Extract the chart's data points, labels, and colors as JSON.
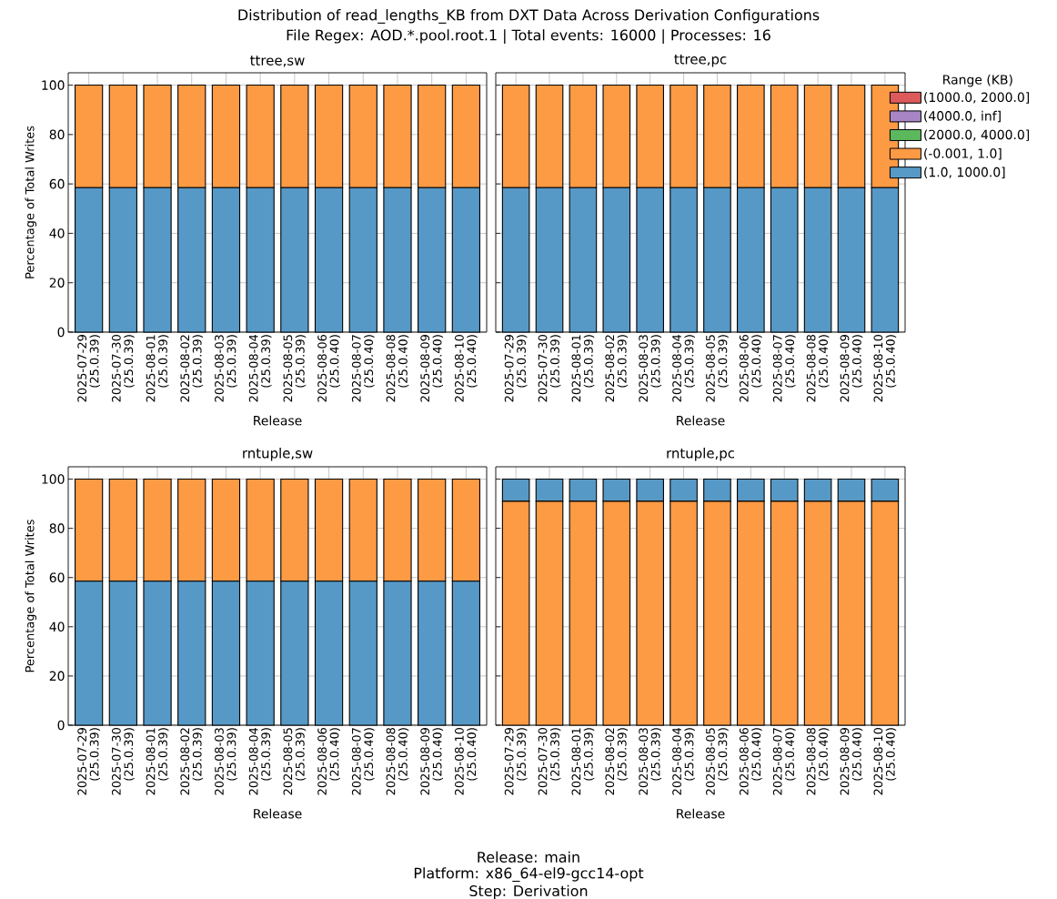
{
  "chart_data": [
    {
      "type": "bar",
      "title": "ttree,sw",
      "xlabel": "Release",
      "ylabel": "Percentage of Total Writes",
      "stacked": true,
      "grid": true,
      "ylim": [
        0,
        105
      ],
      "yticks": [
        0,
        20,
        40,
        60,
        80,
        100
      ],
      "annotations": [
        "Distribution of read_lengths_KB from DXT Data Across Derivation Configurations",
        "File Regex: AOD.*.pool.root.1 | Total events: 16000 | Processes: 16"
      ],
      "categories": [
        "2025-07-29 (25.0.39)",
        "2025-07-30 (25.0.39)",
        "2025-08-01 (25.0.39)",
        "2025-08-02 (25.0.39)",
        "2025-08-03 (25.0.39)",
        "2025-08-04 (25.0.39)",
        "2025-08-05 (25.0.39)",
        "2025-08-06 (25.0.40)",
        "2025-08-07 (25.0.40)",
        "2025-08-08 (25.0.40)",
        "2025-08-09 (25.0.40)",
        "2025-08-10 (25.0.40)"
      ],
      "series": [
        {
          "color": "#5799c6",
          "values": [
            58.5,
            58.5,
            58.5,
            58.5,
            58.5,
            58.5,
            58.5,
            58.5,
            58.5,
            58.5,
            58.5,
            58.5
          ]
        },
        {
          "color": "#fd9a44",
          "values": [
            41.5,
            41.5,
            41.5,
            41.5,
            41.5,
            41.5,
            41.5,
            41.5,
            41.5,
            41.5,
            41.5,
            41.5
          ]
        }
      ]
    },
    {
      "type": "bar",
      "title": "ttree,pc",
      "xlabel": "Release",
      "stacked": true,
      "grid": true,
      "tick_labels": "x",
      "ylim": [
        0,
        105
      ],
      "yticks": [
        0,
        20,
        40,
        60,
        80,
        100
      ],
      "legend": "right",
      "legend_title": "Range (KB)",
      "categories": [
        "2025-07-29 (25.0.39)",
        "2025-07-30 (25.0.39)",
        "2025-08-01 (25.0.39)",
        "2025-08-02 (25.0.39)",
        "2025-08-03 (25.0.39)",
        "2025-08-04 (25.0.39)",
        "2025-08-05 (25.0.39)",
        "2025-08-06 (25.0.40)",
        "2025-08-07 (25.0.40)",
        "2025-08-08 (25.0.40)",
        "2025-08-09 (25.0.40)",
        "2025-08-10 (25.0.40)"
      ],
      "series": [
        {
          "name": "(1.0, 1000.0]",
          "color": "#5799c6",
          "values": [
            58.5,
            58.5,
            58.5,
            58.5,
            58.5,
            58.5,
            58.5,
            58.5,
            58.5,
            58.5,
            58.5,
            58.5
          ]
        },
        {
          "name": "(-0.001, 1.0]",
          "color": "#fd9a44",
          "values": [
            41.5,
            41.5,
            41.5,
            41.5,
            41.5,
            41.5,
            41.5,
            41.5,
            41.5,
            41.5,
            41.5,
            41.5
          ]
        },
        {
          "name": "(2000.0, 4000.0]",
          "color": "#5cb85c",
          "values": [
            0,
            0,
            0,
            0,
            0,
            0,
            0,
            0,
            0,
            0,
            0,
            0
          ]
        },
        {
          "name": "(4000.0, inf]",
          "color": "#a886c6",
          "values": [
            0,
            0,
            0,
            0,
            0,
            0,
            0,
            0,
            0,
            0,
            0,
            0
          ]
        },
        {
          "name": "(1000.0, 2000.0]",
          "color": "#dc5a5b",
          "values": [
            0,
            0,
            0,
            0,
            0,
            0,
            0,
            0,
            0,
            0,
            0,
            0
          ]
        }
      ]
    },
    {
      "type": "bar",
      "title": "rntuple,sw",
      "xlabel": "Release",
      "ylabel": "Percentage of Total Writes",
      "stacked": true,
      "grid": true,
      "ylim": [
        0,
        105
      ],
      "yticks": [
        0,
        20,
        40,
        60,
        80,
        100
      ],
      "categories": [
        "2025-07-29 (25.0.39)",
        "2025-07-30 (25.0.39)",
        "2025-08-01 (25.0.39)",
        "2025-08-02 (25.0.39)",
        "2025-08-03 (25.0.39)",
        "2025-08-04 (25.0.39)",
        "2025-08-05 (25.0.39)",
        "2025-08-06 (25.0.40)",
        "2025-08-07 (25.0.40)",
        "2025-08-08 (25.0.40)",
        "2025-08-09 (25.0.40)",
        "2025-08-10 (25.0.40)"
      ],
      "series": [
        {
          "color": "#5799c6",
          "values": [
            58.5,
            58.5,
            58.5,
            58.5,
            58.5,
            58.5,
            58.5,
            58.5,
            58.5,
            58.5,
            58.5,
            58.5
          ]
        },
        {
          "color": "#fd9a44",
          "values": [
            41.5,
            41.5,
            41.5,
            41.5,
            41.5,
            41.5,
            41.5,
            41.5,
            41.5,
            41.5,
            41.5,
            41.5
          ]
        }
      ]
    },
    {
      "type": "bar",
      "title": "rntuple,pc",
      "xlabel": "Release",
      "stacked": true,
      "grid": true,
      "tick_labels": "x",
      "ylim": [
        0,
        105
      ],
      "yticks": [
        0,
        20,
        40,
        60,
        80,
        100
      ],
      "annotations": [
        "Release: main",
        "Platform: x86_64-el9-gcc14-opt",
        "Step: Derivation"
      ],
      "categories": [
        "2025-07-29 (25.0.39)",
        "2025-07-30 (25.0.39)",
        "2025-08-01 (25.0.39)",
        "2025-08-02 (25.0.39)",
        "2025-08-03 (25.0.39)",
        "2025-08-04 (25.0.39)",
        "2025-08-05 (25.0.39)",
        "2025-08-06 (25.0.40)",
        "2025-08-07 (25.0.40)",
        "2025-08-08 (25.0.40)",
        "2025-08-09 (25.0.40)",
        "2025-08-10 (25.0.40)"
      ],
      "series": [
        {
          "color": "#fd9a44",
          "values": [
            91,
            91,
            91,
            91,
            91,
            91,
            91,
            91,
            91,
            91,
            91,
            91
          ]
        },
        {
          "color": "#5799c6",
          "values": [
            9,
            9,
            9,
            9,
            9,
            9,
            9,
            9,
            9,
            9,
            9,
            9
          ]
        }
      ]
    }
  ]
}
